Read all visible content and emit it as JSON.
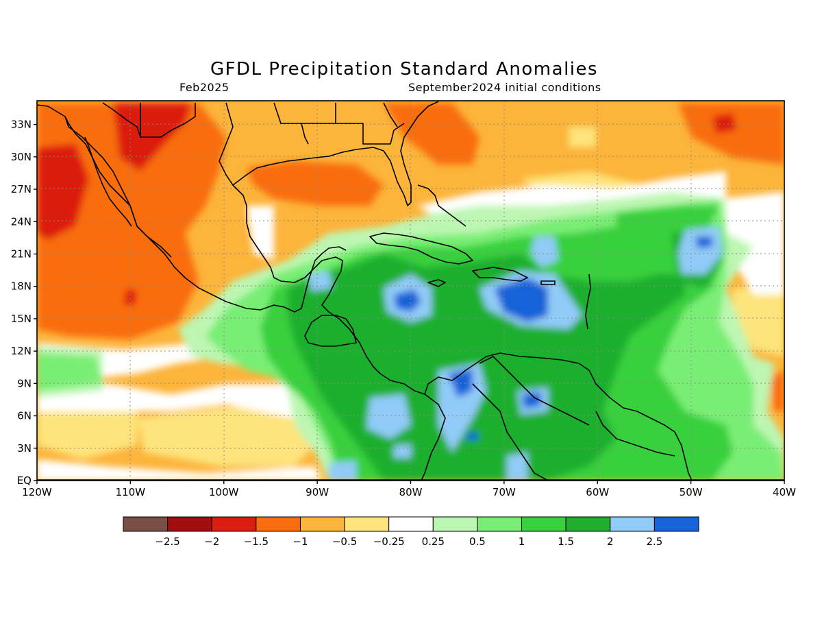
{
  "header": {
    "title": "GFDL Precipitation Standard Anomalies",
    "valid_month": "Feb2025",
    "init": "September2024 initial conditions"
  },
  "axes": {
    "lat_labels": [
      "33N",
      "30N",
      "27N",
      "24N",
      "21N",
      "18N",
      "15N",
      "12N",
      "9N",
      "6N",
      "3N",
      "EQ"
    ],
    "lat_values": [
      33,
      30,
      27,
      24,
      21,
      18,
      15,
      12,
      9,
      6,
      3,
      0
    ],
    "lon_labels": [
      "120W",
      "110W",
      "100W",
      "90W",
      "80W",
      "70W",
      "60W",
      "50W",
      "40W"
    ],
    "lon_values": [
      -120,
      -110,
      -100,
      -90,
      -80,
      -70,
      -60,
      -50,
      -40
    ],
    "lon_range": [
      -120,
      -40
    ],
    "lat_range": [
      0,
      35.2
    ],
    "grid": "dotted"
  },
  "colorbar": {
    "colors": [
      "#7a4f45",
      "#a20d0e",
      "#db1e0f",
      "#f96d0f",
      "#fcb43a",
      "#fde47c",
      "#ffffff",
      "#bdf6b2",
      "#79ee74",
      "#38d03c",
      "#1faf2d",
      "#91cbf8",
      "#1664d8"
    ],
    "tick_labels": [
      "-2.5",
      "-2",
      "-1.5",
      "-1",
      "-0.5",
      "-0.25",
      "0.25",
      "0.5",
      "1",
      "1.5",
      "2",
      "2.5"
    ]
  },
  "chart_data": {
    "type": "heatmap",
    "title": "GFDL Precipitation Standard Anomalies",
    "variable": "precipitation standard anomaly",
    "levels": [
      -2.5,
      -2,
      -1.5,
      -1,
      -0.5,
      -0.25,
      0.25,
      0.5,
      1,
      1.5,
      2,
      2.5
    ],
    "region": {
      "lon": [
        -120,
        -40
      ],
      "lat": [
        0,
        35.2
      ]
    },
    "features": [
      {
        "lon": -116,
        "lat": 27.5,
        "value": -1.7
      },
      {
        "lon": -108,
        "lat": 31.5,
        "value": -1.7
      },
      {
        "lon": -110,
        "lat": 16.5,
        "value": -1.2
      },
      {
        "lon": -105,
        "lat": 23,
        "value": -1.1
      },
      {
        "lon": -92,
        "lat": 27.5,
        "value": -1.0
      },
      {
        "lon": -84,
        "lat": 28,
        "value": -0.8
      },
      {
        "lon": -68,
        "lat": 33,
        "value": -0.7
      },
      {
        "lon": -48,
        "lat": 32,
        "value": -1.3
      },
      {
        "lon": -44,
        "lat": 16,
        "value": -0.7
      },
      {
        "lon": -105,
        "lat": 5,
        "value": -0.6
      },
      {
        "lon": -96,
        "lat": 5,
        "value": -1.0
      },
      {
        "lon": -82,
        "lat": 21,
        "value": 0.6
      },
      {
        "lon": -81,
        "lat": 16.5,
        "value": 2.5
      },
      {
        "lon": -69,
        "lat": 16,
        "value": 2.6
      },
      {
        "lon": -68,
        "lat": 20.5,
        "value": 2.2
      },
      {
        "lon": -53,
        "lat": 21,
        "value": 2.3
      },
      {
        "lon": -53.5,
        "lat": 18,
        "value": 1.6
      },
      {
        "lon": -67,
        "lat": 7,
        "value": 2.4
      },
      {
        "lon": -74,
        "lat": 8.5,
        "value": 2.4
      },
      {
        "lon": -83,
        "lat": 6,
        "value": 2.1
      },
      {
        "lon": -71,
        "lat": 3,
        "value": 1.8
      },
      {
        "lon": -84,
        "lat": 3,
        "value": 1.5
      },
      {
        "lon": -62,
        "lat": 3,
        "value": 1.6
      },
      {
        "lon": -88,
        "lat": 11,
        "value": 1.2
      },
      {
        "lon": -112,
        "lat": 10,
        "value": 0.7
      }
    ]
  }
}
